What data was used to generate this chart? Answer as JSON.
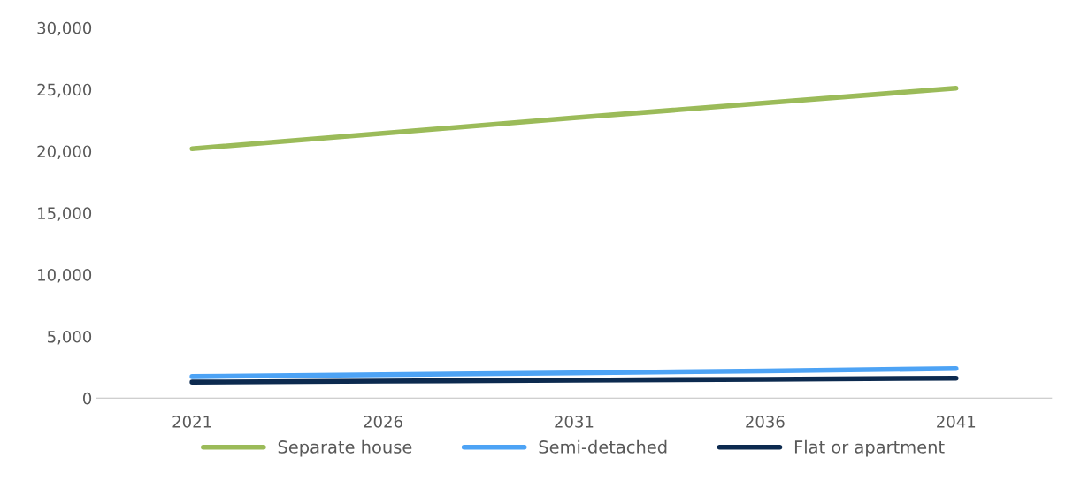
{
  "chart_data": {
    "type": "line",
    "categories": [
      "2021",
      "2026",
      "2031",
      "2036",
      "2041"
    ],
    "series": [
      {
        "name": "Separate house",
        "color": "#9bbb59",
        "values": [
          20200,
          21450,
          22700,
          23900,
          25100
        ]
      },
      {
        "name": "Semi-detached",
        "color": "#4da3f5",
        "values": [
          1750,
          1900,
          2050,
          2200,
          2400
        ]
      },
      {
        "name": "Flat or apartment",
        "color": "#0c2a4f",
        "values": [
          1300,
          1380,
          1460,
          1530,
          1620
        ]
      }
    ],
    "ylim": [
      0,
      30000
    ],
    "yticks": [
      {
        "value": 0,
        "label": "0"
      },
      {
        "value": 5000,
        "label": "5,000"
      },
      {
        "value": 10000,
        "label": "10,000"
      },
      {
        "value": 15000,
        "label": "15,000"
      },
      {
        "value": 20000,
        "label": "20,000"
      },
      {
        "value": 25000,
        "label": "25,000"
      },
      {
        "value": 30000,
        "label": "30,000"
      }
    ],
    "grid": false,
    "legend": "bottom",
    "marker": "none",
    "line_style": "solid"
  }
}
